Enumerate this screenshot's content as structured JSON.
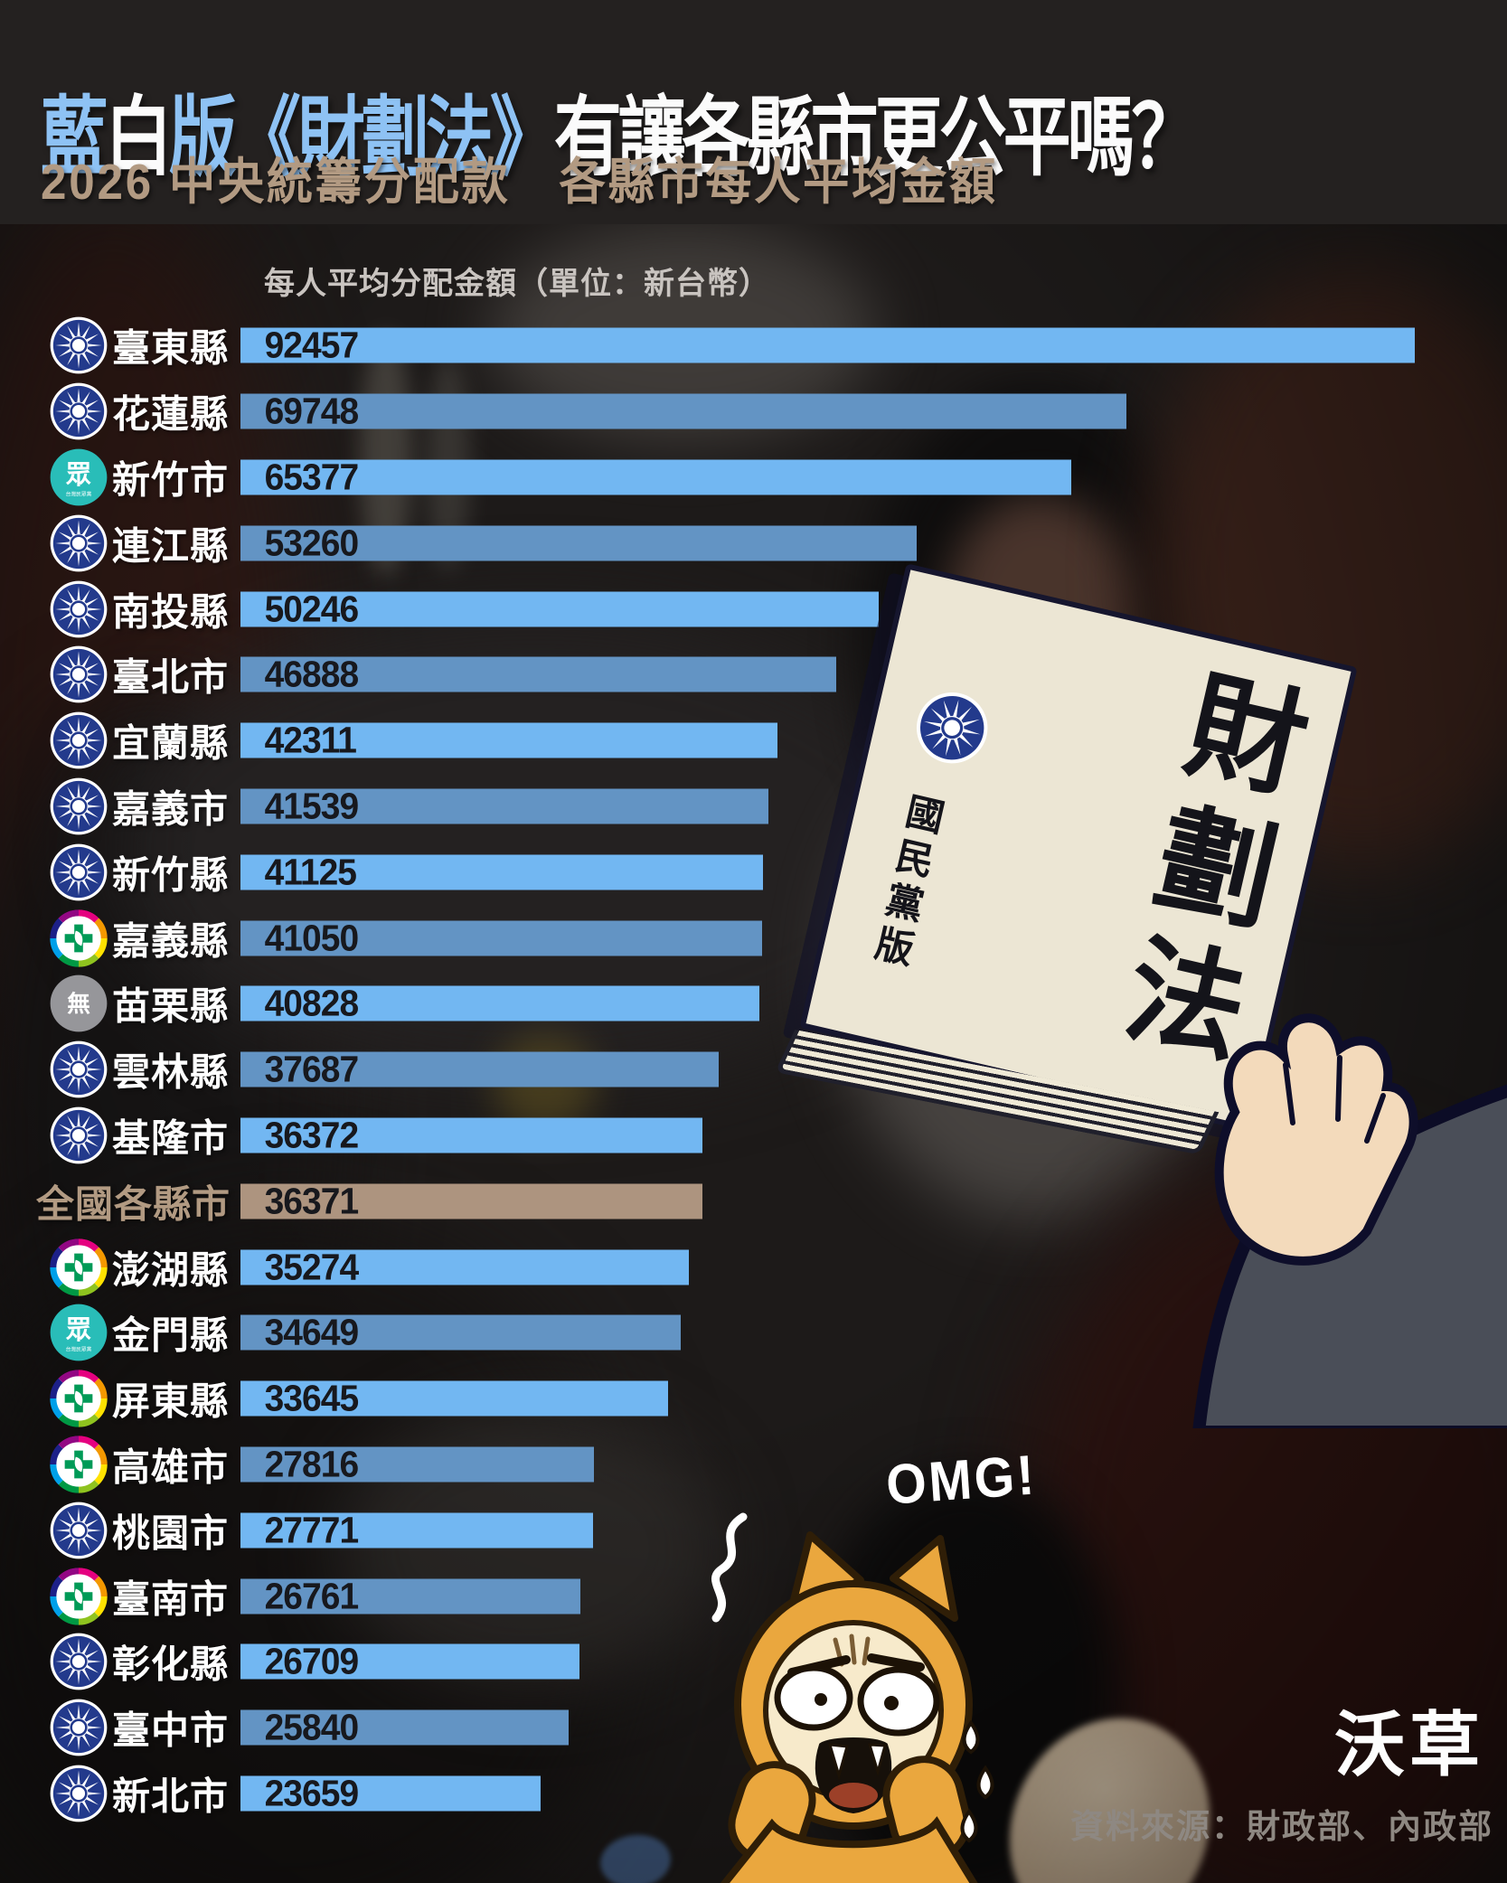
{
  "header": {
    "title_segments": [
      {
        "text": "藍",
        "tone": "blue"
      },
      {
        "text": "白",
        "tone": "white"
      },
      {
        "text": "版《財劃法》",
        "tone": "blue"
      },
      {
        "text": "有讓各縣市更公平嗎？",
        "tone": "white"
      }
    ],
    "subtitle": "2026 中央統籌分配款　各縣市每人平均金額"
  },
  "chart_data": {
    "type": "bar",
    "orientation": "horizontal",
    "title": "2026 中央統籌分配款 各縣市每人平均金額",
    "value_axis_label": "每人平均分配金額（單位：新台幣）",
    "unit": "新台幣",
    "max_value": 92457,
    "categories": [
      "臺東縣",
      "花蓮縣",
      "新竹市",
      "連江縣",
      "南投縣",
      "臺北市",
      "宜蘭縣",
      "嘉義市",
      "新竹縣",
      "嘉義縣",
      "苗栗縣",
      "雲林縣",
      "基隆市",
      "全國各縣市",
      "澎湖縣",
      "金門縣",
      "屏東縣",
      "高雄市",
      "桃園市",
      "臺南市",
      "彰化縣",
      "臺中市",
      "新北市"
    ],
    "values": [
      92457,
      69748,
      65377,
      53260,
      50246,
      46888,
      42311,
      41539,
      41125,
      41050,
      40828,
      37687,
      36372,
      36371,
      35274,
      34649,
      33645,
      27816,
      27771,
      26761,
      26709,
      25840,
      23659
    ],
    "parties": [
      "kmt",
      "kmt",
      "tpp",
      "kmt",
      "kmt",
      "kmt",
      "kmt",
      "kmt",
      "kmt",
      "dpp",
      "none",
      "kmt",
      "kmt",
      "national",
      "dpp",
      "tpp",
      "dpp",
      "dpp",
      "kmt",
      "dpp",
      "kmt",
      "kmt",
      "kmt"
    ],
    "bar_shades": [
      "light",
      "steel",
      "light",
      "steel",
      "light",
      "steel",
      "light",
      "steel",
      "light",
      "steel",
      "light",
      "steel",
      "light",
      "tan",
      "light",
      "steel",
      "light",
      "steel",
      "light",
      "steel",
      "light",
      "steel",
      "light"
    ],
    "highlight_category": "全國各縣市",
    "legend_position": "none",
    "grid": false
  },
  "icons": {
    "tpp_glyph": "眾",
    "tpp_caption": "台灣民眾黨",
    "none_glyph": "無"
  },
  "illustration": {
    "document_title": "財劃法",
    "document_edition": "國民黨版",
    "omg_text": "OMG!"
  },
  "footer": {
    "brand": "沃草",
    "source": "資料來源：財政部、內政部"
  },
  "palette": {
    "bar_light": "#72b7f2",
    "bar_steel": "#6394c4",
    "bar_tan": "#ad947f",
    "title_blue": "#8ec2f4",
    "subtitle_tan": "#b29a82",
    "value_text": "#17181d",
    "kmt_blue": "#233a8c",
    "tpp_teal": "#29bdb8",
    "dpp_green": "#009a57",
    "none_gray": "#96969a"
  }
}
